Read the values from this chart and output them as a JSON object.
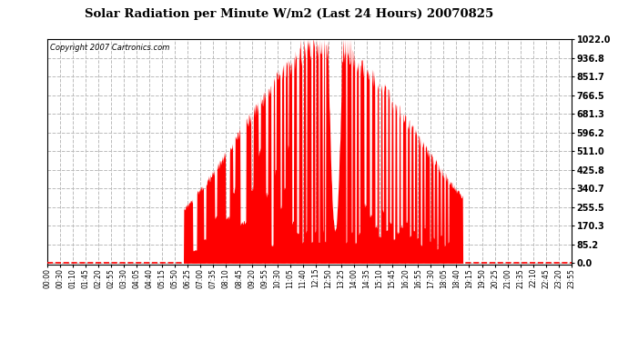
{
  "title": "Solar Radiation per Minute W/m2 (Last 24 Hours) 20070825",
  "copyright": "Copyright 2007 Cartronics.com",
  "bar_color": "#FF0000",
  "background_color": "#FFFFFF",
  "grid_color": "#BBBBBB",
  "zero_line_color": "#FF0000",
  "ylim": [
    0.0,
    1022.0
  ],
  "yticks": [
    0.0,
    85.2,
    170.3,
    255.5,
    340.7,
    425.8,
    511.0,
    596.2,
    681.3,
    766.5,
    851.7,
    936.8,
    1022.0
  ],
  "xtick_labels": [
    "00:00",
    "00:30",
    "01:10",
    "01:45",
    "02:20",
    "02:55",
    "03:30",
    "04:05",
    "04:40",
    "05:15",
    "05:50",
    "06:25",
    "07:00",
    "07:35",
    "08:10",
    "08:45",
    "09:20",
    "09:55",
    "10:30",
    "11:05",
    "11:40",
    "12:15",
    "12:50",
    "13:25",
    "14:00",
    "14:35",
    "15:10",
    "15:45",
    "16:20",
    "16:55",
    "17:30",
    "18:05",
    "18:40",
    "19:15",
    "19:50",
    "20:25",
    "21:00",
    "21:35",
    "22:10",
    "22:45",
    "23:20",
    "23:55"
  ]
}
